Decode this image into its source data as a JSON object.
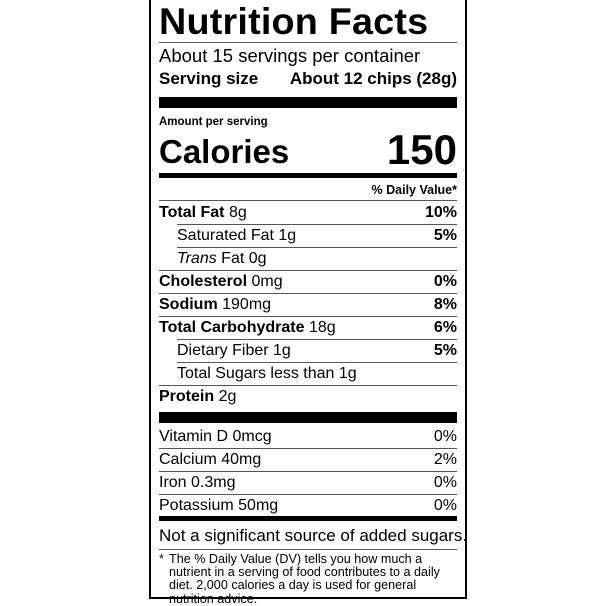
{
  "title": "Nutrition Facts",
  "servings_per_container": "About 15 servings per container",
  "serving_size": {
    "label": "Serving size",
    "value": "About 12 chips (28g)"
  },
  "amount_per_serving": "Amount per serving",
  "calories": {
    "label": "Calories",
    "value": "150"
  },
  "daily_value_header": "% Daily Value*",
  "nutrients": [
    {
      "name": "Total Fat",
      "amount": "8g",
      "dv": "10%",
      "bold": true,
      "indent": false
    },
    {
      "name": "Saturated Fat",
      "amount": "1g",
      "dv": "5%",
      "bold": false,
      "indent": true
    },
    {
      "name": "Trans",
      "name_suffix": "Fat",
      "amount": "0g",
      "dv": "",
      "bold": false,
      "indent": true,
      "italic_prefix": true
    },
    {
      "name": "Cholesterol",
      "amount": "0mg",
      "dv": "0%",
      "bold": true,
      "indent": false
    },
    {
      "name": "Sodium",
      "amount": "190mg",
      "dv": "8%",
      "bold": true,
      "indent": false
    },
    {
      "name": "Total Carbohydrate",
      "amount": "18g",
      "dv": "6%",
      "bold": true,
      "indent": false
    },
    {
      "name": "Dietary Fiber",
      "amount": "1g",
      "dv": "5%",
      "bold": false,
      "indent": true
    },
    {
      "name": "Total Sugars",
      "amount": "less than 1g",
      "dv": "",
      "bold": false,
      "indent": true
    },
    {
      "name": "Protein",
      "amount": "2g",
      "dv": "",
      "bold": true,
      "indent": false
    }
  ],
  "vitamins": [
    {
      "name": "Vitamin D",
      "amount": "0mcg",
      "dv": "0%"
    },
    {
      "name": "Calcium",
      "amount": "40mg",
      "dv": "2%"
    },
    {
      "name": "Iron",
      "amount": "0.3mg",
      "dv": "0%"
    },
    {
      "name": "Potassium",
      "amount": "50mg",
      "dv": "0%"
    }
  ],
  "added_sugars_note": "Not a significant source of added sugars.",
  "footnote_star": "*",
  "footnote": "The % Daily Value (DV) tells you how much a nutrient in a serving of food contributes to a daily diet. 2,000 calories a day is used for general nutrition advice."
}
